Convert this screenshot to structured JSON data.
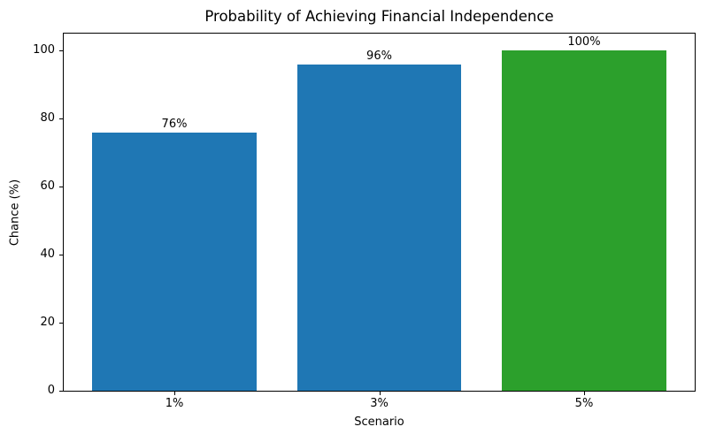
{
  "chart_data": {
    "type": "bar",
    "title": "Probability of Achieving Financial Independence",
    "xlabel": "Scenario",
    "ylabel": "Chance (%)",
    "categories": [
      "1%",
      "3%",
      "5%"
    ],
    "values": [
      76,
      96,
      100
    ],
    "bar_labels": [
      "76%",
      "96%",
      "100%"
    ],
    "bar_colors": [
      "#1f77b4",
      "#1f77b4",
      "#2ca02c"
    ],
    "yticks": [
      0,
      20,
      40,
      60,
      80,
      100
    ],
    "ylim": [
      0,
      105
    ],
    "grid": false,
    "legend_position": "none",
    "background_color": "#ffffff"
  }
}
